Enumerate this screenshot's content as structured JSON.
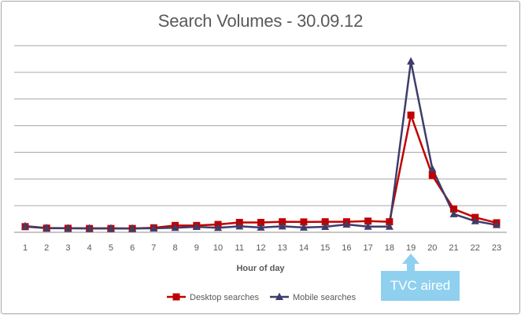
{
  "chart_data": {
    "type": "line",
    "title": "Search Volumes - 30.09.12",
    "xlabel": "Hour of day",
    "ylabel": "",
    "categories": [
      "1",
      "2",
      "3",
      "4",
      "5",
      "6",
      "7",
      "8",
      "9",
      "10",
      "11",
      "12",
      "13",
      "14",
      "15",
      "16",
      "17",
      "18",
      "19",
      "20",
      "21",
      "22",
      "23"
    ],
    "ylim": [
      0,
      100
    ],
    "grid": true,
    "legend": "bottom",
    "series": [
      {
        "name": "Desktop searches",
        "color": "#c00000",
        "marker": "square",
        "values": [
          1.5,
          0.6,
          0.5,
          0.4,
          0.4,
          0.4,
          0.8,
          2.2,
          2.2,
          2.8,
          4.0,
          4.0,
          4.4,
          4.3,
          4.4,
          4.4,
          4.8,
          4.4,
          68.0,
          32.0,
          12.0,
          7.0,
          3.8
        ]
      },
      {
        "name": "Mobile searches",
        "color": "#3d3d6b",
        "marker": "triangle",
        "values": [
          1.8,
          0.7,
          0.6,
          0.5,
          0.5,
          0.4,
          0.5,
          0.8,
          1.4,
          0.8,
          1.7,
          1.0,
          1.7,
          1.0,
          1.4,
          2.8,
          1.5,
          1.5,
          100.0,
          36.0,
          9.0,
          4.8,
          2.5
        ]
      }
    ]
  },
  "annotation": {
    "label": "TVC aired",
    "category": "19",
    "color": "#8fd0ee"
  }
}
